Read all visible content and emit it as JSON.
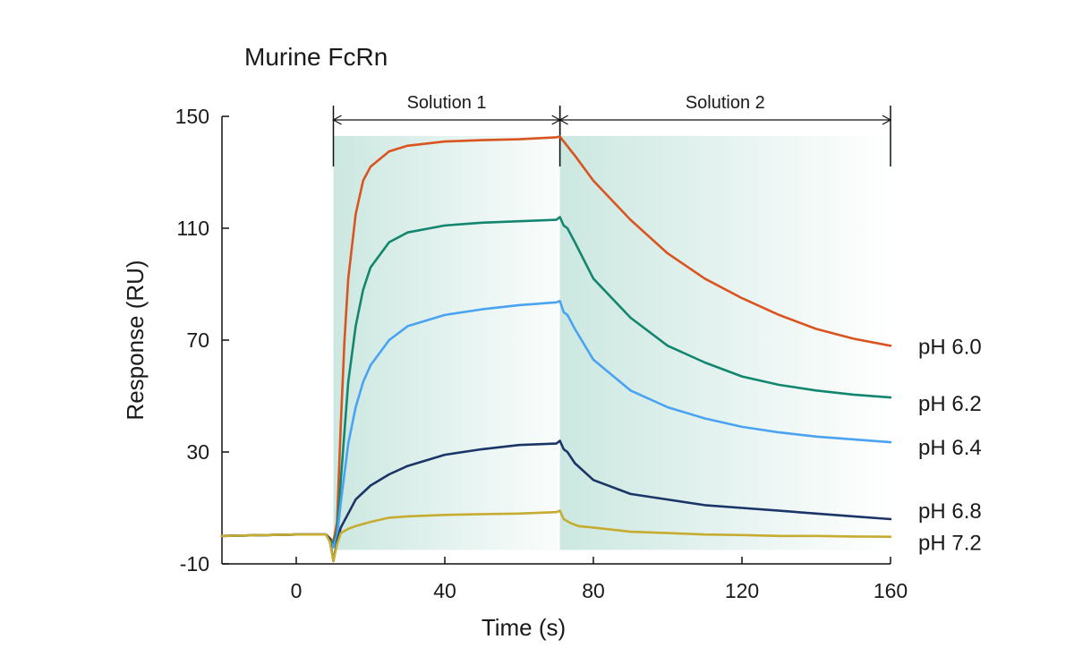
{
  "chart_data": {
    "type": "line",
    "title": "Murine FcRn",
    "xlabel": "Time (s)",
    "ylabel": "Response (RU)",
    "xlim": [
      -20,
      160
    ],
    "ylim": [
      -10,
      150
    ],
    "xticks": [
      0,
      40,
      80,
      120,
      160
    ],
    "yticks": [
      -10,
      30,
      70,
      110,
      150
    ],
    "grid": false,
    "legend": "inline-right",
    "regions": [
      {
        "label": "Solution 1",
        "x_start": 10,
        "x_end": 71
      },
      {
        "label": "Solution 2",
        "x_start": 71,
        "x_end": 160
      }
    ],
    "region_color": "#c9e6df",
    "series": [
      {
        "name": "pH 6.0",
        "color": "#d9541e",
        "x": [
          -20,
          0,
          8,
          10,
          11,
          12,
          13,
          14,
          16,
          18,
          20,
          25,
          30,
          40,
          50,
          60,
          70,
          71,
          72,
          75,
          80,
          90,
          100,
          110,
          120,
          130,
          140,
          150,
          160
        ],
        "y": [
          0,
          0.5,
          0.5,
          -2,
          5,
          40,
          70,
          92,
          115,
          127,
          132,
          137.5,
          139.5,
          141,
          141.5,
          141.8,
          142.5,
          142.8,
          141,
          136,
          127,
          113,
          101,
          92,
          85,
          79,
          74,
          70.5,
          68
        ]
      },
      {
        "name": "pH 6.2",
        "color": "#13866f",
        "x": [
          -20,
          0,
          8,
          10,
          11,
          12,
          14,
          16,
          18,
          20,
          25,
          30,
          40,
          50,
          60,
          70,
          71,
          72,
          73,
          75,
          80,
          90,
          100,
          110,
          120,
          130,
          140,
          150,
          160
        ],
        "y": [
          0,
          0.5,
          0.5,
          -3,
          2,
          20,
          55,
          75,
          88,
          96,
          105,
          108.5,
          111,
          112,
          112.5,
          113,
          114,
          111,
          110,
          105,
          92,
          78,
          68,
          62,
          57,
          54,
          52,
          50.5,
          49.5
        ]
      },
      {
        "name": "pH 6.4",
        "color": "#4aa3f2",
        "x": [
          -20,
          0,
          8,
          10,
          11,
          12,
          14,
          16,
          18,
          20,
          25,
          30,
          40,
          50,
          60,
          70,
          71,
          72,
          73,
          75,
          80,
          90,
          100,
          110,
          120,
          130,
          140,
          150,
          160
        ],
        "y": [
          0,
          0.5,
          0.5,
          -4,
          0,
          12,
          33,
          46,
          55,
          61,
          70,
          75,
          79,
          81,
          82.5,
          83.5,
          84,
          80,
          79,
          74,
          63,
          52,
          46,
          42,
          39,
          37,
          35.5,
          34.5,
          33.5
        ]
      },
      {
        "name": "pH 6.8",
        "color": "#1b3568",
        "x": [
          -20,
          0,
          8,
          9,
          10,
          11,
          12,
          14,
          16,
          20,
          25,
          30,
          40,
          50,
          60,
          70,
          71,
          72,
          73,
          75,
          80,
          90,
          100,
          110,
          120,
          130,
          140,
          150,
          160
        ],
        "y": [
          0,
          0.5,
          0.5,
          -1,
          -9,
          -2,
          3,
          8,
          13,
          18,
          22,
          25,
          29,
          31,
          32.5,
          33,
          34,
          31,
          30,
          26,
          20,
          15,
          13,
          11,
          10,
          9,
          8,
          7,
          6
        ]
      },
      {
        "name": "pH 7.2",
        "color": "#c6ac30",
        "x": [
          -20,
          0,
          8,
          9,
          10,
          11,
          12,
          14,
          16,
          20,
          25,
          30,
          40,
          50,
          60,
          70,
          71,
          72,
          74,
          76,
          80,
          90,
          100,
          110,
          120,
          130,
          140,
          150,
          160
        ],
        "y": [
          0,
          0.5,
          0.5,
          -2,
          -9,
          -3,
          1,
          2.5,
          3.5,
          5,
          6.5,
          7,
          7.5,
          7.8,
          8,
          8.5,
          9,
          6,
          4.5,
          3.5,
          3,
          1.5,
          1,
          0.5,
          0.3,
          0,
          0,
          -0.2,
          -0.3
        ]
      }
    ]
  }
}
